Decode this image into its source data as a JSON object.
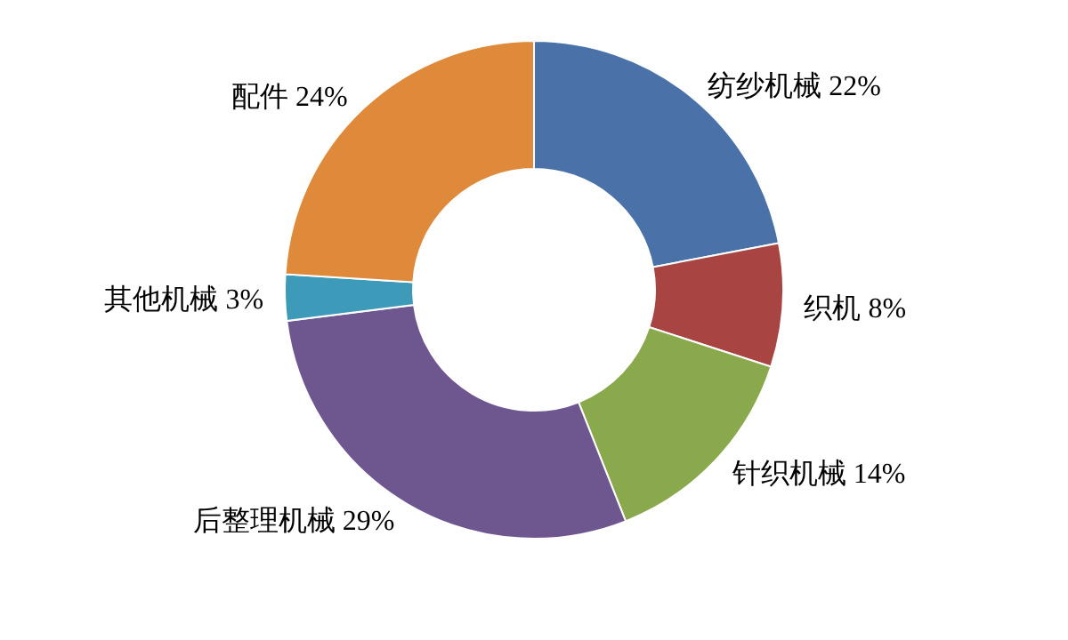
{
  "chart_data": {
    "type": "donut",
    "categories": [
      "纺纱机械",
      "织机",
      "针织机械",
      "后整理机械",
      "其他机械",
      "配件"
    ],
    "values": [
      22,
      8,
      14,
      29,
      3,
      24
    ],
    "value_labels": [
      "22%",
      "8%",
      "14%",
      "29%",
      "3%",
      "24%"
    ],
    "colors": [
      "#4a72a8",
      "#a84543",
      "#8aa84c",
      "#6e568f",
      "#3d9ab8",
      "#de8a3a"
    ]
  }
}
